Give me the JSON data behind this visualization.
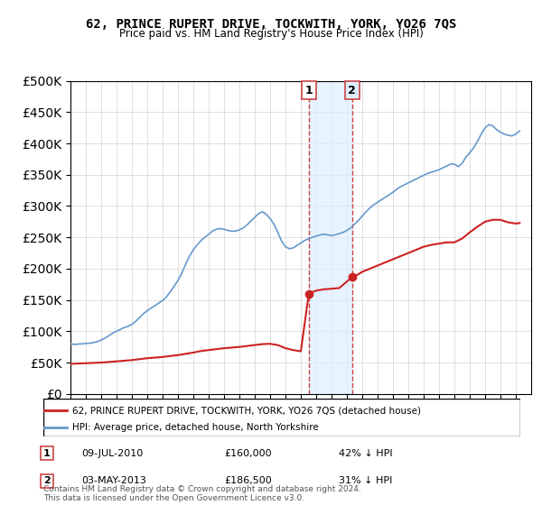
{
  "title": "62, PRINCE RUPERT DRIVE, TOCKWITH, YORK, YO26 7QS",
  "subtitle": "Price paid vs. HM Land Registry's House Price Index (HPI)",
  "ylabel_ticks": [
    "£0",
    "£50K",
    "£100K",
    "£150K",
    "£200K",
    "£250K",
    "£300K",
    "£350K",
    "£400K",
    "£450K",
    "£500K"
  ],
  "ytick_values": [
    0,
    50000,
    100000,
    150000,
    200000,
    250000,
    300000,
    350000,
    400000,
    450000,
    500000
  ],
  "ylim": [
    0,
    500000
  ],
  "hpi_color": "#6699cc",
  "price_color": "#cc2222",
  "annotation_fill": "#ddeeff",
  "annotation_line_color": "#cc4444",
  "legend_label_red": "62, PRINCE RUPERT DRIVE, TOCKWITH, YORK, YO26 7QS (detached house)",
  "legend_label_blue": "HPI: Average price, detached house, North Yorkshire",
  "sale1_date": "09-JUL-2010",
  "sale1_price": "£160,000",
  "sale1_hpi": "42% ↓ HPI",
  "sale1_year": 2010.52,
  "sale1_value": 160000,
  "sale2_date": "03-MAY-2013",
  "sale2_price": "£186,500",
  "sale2_hpi": "31% ↓ HPI",
  "sale2_year": 2013.34,
  "sale2_value": 186500,
  "footer": "Contains HM Land Registry data © Crown copyright and database right 2024.\nThis data is licensed under the Open Government Licence v3.0.",
  "hpi_data": {
    "years": [
      1995.0,
      1995.25,
      1995.5,
      1995.75,
      1996.0,
      1996.25,
      1996.5,
      1996.75,
      1997.0,
      1997.25,
      1997.5,
      1997.75,
      1998.0,
      1998.25,
      1998.5,
      1998.75,
      1999.0,
      1999.25,
      1999.5,
      1999.75,
      2000.0,
      2000.25,
      2000.5,
      2000.75,
      2001.0,
      2001.25,
      2001.5,
      2001.75,
      2002.0,
      2002.25,
      2002.5,
      2002.75,
      2003.0,
      2003.25,
      2003.5,
      2003.75,
      2004.0,
      2004.25,
      2004.5,
      2004.75,
      2005.0,
      2005.25,
      2005.5,
      2005.75,
      2006.0,
      2006.25,
      2006.5,
      2006.75,
      2007.0,
      2007.25,
      2007.5,
      2007.75,
      2008.0,
      2008.25,
      2008.5,
      2008.75,
      2009.0,
      2009.25,
      2009.5,
      2009.75,
      2010.0,
      2010.25,
      2010.5,
      2010.75,
      2011.0,
      2011.25,
      2011.5,
      2011.75,
      2012.0,
      2012.25,
      2012.5,
      2012.75,
      2013.0,
      2013.25,
      2013.5,
      2013.75,
      2014.0,
      2014.25,
      2014.5,
      2014.75,
      2015.0,
      2015.25,
      2015.5,
      2015.75,
      2016.0,
      2016.25,
      2016.5,
      2016.75,
      2017.0,
      2017.25,
      2017.5,
      2017.75,
      2018.0,
      2018.25,
      2018.5,
      2018.75,
      2019.0,
      2019.25,
      2019.5,
      2019.75,
      2020.0,
      2020.25,
      2020.5,
      2020.75,
      2021.0,
      2021.25,
      2021.5,
      2021.75,
      2022.0,
      2022.25,
      2022.5,
      2022.75,
      2023.0,
      2023.25,
      2023.5,
      2023.75,
      2024.0,
      2024.25
    ],
    "values": [
      80000,
      79000,
      79500,
      80000,
      80500,
      81000,
      82000,
      83500,
      86000,
      89000,
      93000,
      97000,
      100000,
      103000,
      106000,
      108000,
      111000,
      116000,
      122000,
      128000,
      133000,
      137000,
      141000,
      145000,
      149000,
      155000,
      163000,
      172000,
      181000,
      193000,
      207000,
      220000,
      230000,
      238000,
      245000,
      250000,
      255000,
      260000,
      263000,
      264000,
      263000,
      261000,
      260000,
      260000,
      262000,
      265000,
      270000,
      276000,
      282000,
      288000,
      291000,
      287000,
      280000,
      271000,
      258000,
      244000,
      235000,
      232000,
      233000,
      237000,
      241000,
      245000,
      248000,
      250000,
      252000,
      254000,
      255000,
      254000,
      253000,
      254000,
      256000,
      258000,
      261000,
      265000,
      271000,
      277000,
      284000,
      291000,
      297000,
      302000,
      306000,
      310000,
      314000,
      318000,
      322000,
      327000,
      331000,
      334000,
      337000,
      340000,
      343000,
      346000,
      349000,
      352000,
      354000,
      356000,
      358000,
      361000,
      364000,
      367000,
      367000,
      363000,
      368000,
      378000,
      385000,
      393000,
      403000,
      415000,
      425000,
      430000,
      428000,
      422000,
      418000,
      415000,
      413000,
      412000,
      415000,
      420000
    ]
  },
  "price_data": {
    "years": [
      1995.0,
      1995.5,
      1996.0,
      1996.5,
      1997.0,
      1997.5,
      1998.0,
      1998.5,
      1999.0,
      1999.5,
      2000.0,
      2000.5,
      2001.0,
      2001.5,
      2002.0,
      2002.5,
      2003.0,
      2003.5,
      2004.0,
      2004.5,
      2005.0,
      2005.5,
      2006.0,
      2006.5,
      2007.0,
      2007.5,
      2008.0,
      2008.5,
      2009.0,
      2009.5,
      2010.0,
      2010.52,
      2011.0,
      2011.5,
      2012.0,
      2012.5,
      2013.34,
      2013.75,
      2014.0,
      2014.5,
      2015.0,
      2015.5,
      2016.0,
      2016.5,
      2017.0,
      2017.5,
      2018.0,
      2018.5,
      2019.0,
      2019.5,
      2020.0,
      2020.5,
      2021.0,
      2021.5,
      2022.0,
      2022.5,
      2023.0,
      2023.5,
      2024.0,
      2024.25
    ],
    "values": [
      48000,
      48500,
      49000,
      49500,
      50000,
      51000,
      52000,
      53000,
      54000,
      55500,
      57000,
      58000,
      59000,
      60500,
      62000,
      64000,
      66000,
      68500,
      70000,
      71500,
      73000,
      74000,
      75000,
      76500,
      78000,
      79500,
      80000,
      78000,
      73000,
      70000,
      68000,
      160000,
      165000,
      167000,
      168000,
      169000,
      186500,
      191000,
      195000,
      200000,
      205000,
      210000,
      215000,
      220000,
      225000,
      230000,
      235000,
      238000,
      240000,
      242000,
      242000,
      248000,
      258000,
      267000,
      275000,
      278000,
      278000,
      274000,
      272000,
      273000
    ]
  }
}
